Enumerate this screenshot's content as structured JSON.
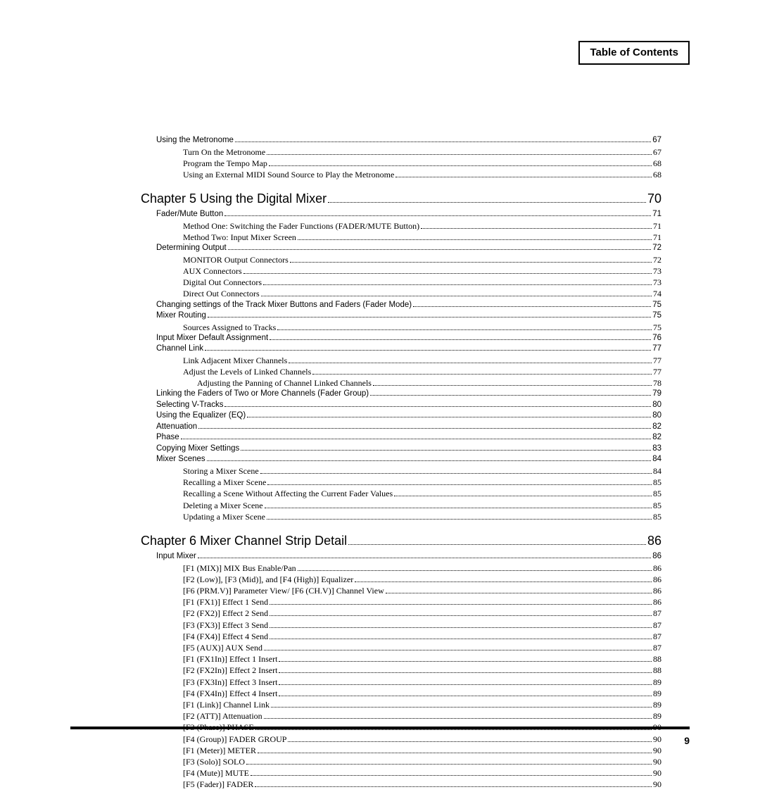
{
  "header_title": "Table of Contents",
  "page_number": "9",
  "entries": [
    {
      "level": "lvl1",
      "label": "Using the Metronome",
      "page": "67"
    },
    {
      "level": "lvl2",
      "label": "Turn On the Metronome",
      "page": "67"
    },
    {
      "level": "lvl2",
      "label": "Program the Tempo Map",
      "page": "68"
    },
    {
      "level": "lvl2",
      "label": "Using an External MIDI Sound Source to Play the Metronome",
      "page": "68"
    },
    {
      "level": "chapter",
      "label": "Chapter 5 Using the Digital Mixer",
      "page": "70"
    },
    {
      "level": "lvl1",
      "label": "Fader/Mute Button",
      "page": "71"
    },
    {
      "level": "lvl2",
      "label": "Method One: Switching the Fader Functions (FADER/MUTE Button)",
      "page": "71"
    },
    {
      "level": "lvl2",
      "label": "Method Two: Input Mixer Screen",
      "page": "71"
    },
    {
      "level": "lvl1",
      "label": "Determining Output",
      "page": "72"
    },
    {
      "level": "lvl2",
      "label": "MONITOR Output Connectors",
      "page": "72"
    },
    {
      "level": "lvl2",
      "label": "AUX Connectors",
      "page": "73"
    },
    {
      "level": "lvl2",
      "label": "Digital Out Connectors",
      "page": "73"
    },
    {
      "level": "lvl2",
      "label": "Direct Out Connectors",
      "page": "74"
    },
    {
      "level": "lvl1",
      "label": "Changing settings of the Track Mixer Buttons and Faders (Fader Mode)",
      "page": "75"
    },
    {
      "level": "lvl1",
      "label": "Mixer Routing",
      "page": "75"
    },
    {
      "level": "lvl2",
      "label": "Sources Assigned to Tracks",
      "page": "75"
    },
    {
      "level": "lvl1",
      "label": "Input Mixer Default Assignment",
      "page": "76"
    },
    {
      "level": "lvl1",
      "label": "Channel Link",
      "page": "77"
    },
    {
      "level": "lvl2",
      "label": "Link Adjacent Mixer Channels",
      "page": "77"
    },
    {
      "level": "lvl2",
      "label": "Adjust the Levels of Linked Channels",
      "page": "77"
    },
    {
      "level": "lvl3",
      "label": "Adjusting the Panning of Channel Linked Channels",
      "page": "78"
    },
    {
      "level": "lvl1",
      "label": "Linking the Faders of Two or More Channels (Fader Group)",
      "page": "79"
    },
    {
      "level": "lvl1",
      "label": "Selecting V-Tracks",
      "page": "80"
    },
    {
      "level": "lvl1",
      "label": "Using the Equalizer (EQ)",
      "page": "80"
    },
    {
      "level": "lvl1",
      "label": "Attenuation",
      "page": "82"
    },
    {
      "level": "lvl1",
      "label": "Phase",
      "page": "82"
    },
    {
      "level": "lvl1",
      "label": "Copying Mixer Settings",
      "page": "83"
    },
    {
      "level": "lvl1",
      "label": "Mixer Scenes",
      "page": "84"
    },
    {
      "level": "lvl2",
      "label": "Storing a Mixer Scene",
      "page": "84"
    },
    {
      "level": "lvl2",
      "label": "Recalling a Mixer Scene",
      "page": "85"
    },
    {
      "level": "lvl2",
      "label": "Recalling a Scene Without Affecting the Current Fader Values",
      "page": "85"
    },
    {
      "level": "lvl2",
      "label": "Deleting a Mixer Scene",
      "page": "85"
    },
    {
      "level": "lvl2",
      "label": "Updating a Mixer Scene",
      "page": "85"
    },
    {
      "level": "chapter",
      "label": "Chapter 6 Mixer Channel Strip Detail",
      "page": "86"
    },
    {
      "level": "lvl1",
      "label": "Input Mixer",
      "page": "86"
    },
    {
      "level": "lvl2",
      "label": "[F1 (MIX)] MIX Bus Enable/Pan",
      "page": "86"
    },
    {
      "level": "lvl2",
      "label": "[F2 (Low)], [F3 (Mid)], and [F4 (High)] Equalizer",
      "page": "86"
    },
    {
      "level": "lvl2",
      "label": "[F6 (PRM.V)] Parameter View/ [F6 (CH.V)] Channel View",
      "page": "86"
    },
    {
      "level": "lvl2",
      "label": "[F1 (FX1)] Effect 1 Send",
      "page": "86"
    },
    {
      "level": "lvl2",
      "label": "[F2 (FX2)] Effect 2 Send",
      "page": "87"
    },
    {
      "level": "lvl2",
      "label": "[F3 (FX3)] Effect 3 Send",
      "page": "87"
    },
    {
      "level": "lvl2",
      "label": "[F4 (FX4)] Effect 4 Send",
      "page": "87"
    },
    {
      "level": "lvl2",
      "label": "[F5 (AUX)] AUX Send",
      "page": "87"
    },
    {
      "level": "lvl2",
      "label": "[F1 (FX1In)] Effect 1 Insert",
      "page": "88"
    },
    {
      "level": "lvl2",
      "label": "[F2 (FX2In)] Effect 2 Insert",
      "page": "88"
    },
    {
      "level": "lvl2",
      "label": "[F3 (FX3In)] Effect 3 Insert",
      "page": "89"
    },
    {
      "level": "lvl2",
      "label": "[F4 (FX4In)] Effect 4 Insert",
      "page": "89"
    },
    {
      "level": "lvl2",
      "label": "[F1 (Link)] Channel Link",
      "page": "89"
    },
    {
      "level": "lvl2",
      "label": "[F2 (ATT)] Attenuation",
      "page": "89"
    },
    {
      "level": "lvl2",
      "label": "[F3 (Phase)] PHASE",
      "page": "90"
    },
    {
      "level": "lvl2",
      "label": "[F4 (Group)] FADER GROUP",
      "page": "90"
    },
    {
      "level": "lvl2",
      "label": "[F1 (Meter)] METER",
      "page": "90"
    },
    {
      "level": "lvl2",
      "label": "[F3 (Solo)] SOLO",
      "page": "90"
    },
    {
      "level": "lvl2",
      "label": "[F4 (Mute)] MUTE",
      "page": "90"
    },
    {
      "level": "lvl2",
      "label": "[F5 (Fader)] FADER",
      "page": "90"
    }
  ]
}
